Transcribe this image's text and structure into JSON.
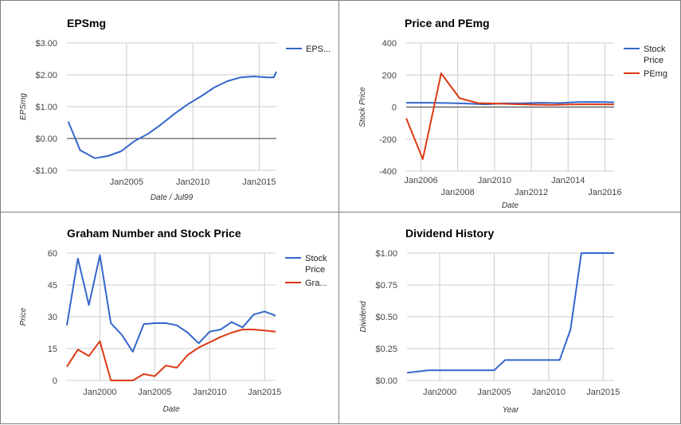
{
  "colors": {
    "blue": "#3366cc",
    "red": "#dc3912",
    "grid": "#cccccc",
    "baseline": "#333333"
  },
  "chart_data": [
    {
      "id": "eps",
      "type": "line",
      "title": "EPSmg",
      "xlabel": "Date / Jul99",
      "ylabel": "EPSmg",
      "xlim": [
        2000.5,
        2016.3
      ],
      "ylim": [
        -1,
        3
      ],
      "x_ticks": [
        {
          "v": 2005,
          "label": "Jan2005"
        },
        {
          "v": 2010,
          "label": "Jan2010"
        },
        {
          "v": 2015,
          "label": "Jan2015"
        }
      ],
      "y_ticks": [
        {
          "v": -1,
          "label": "-$1.00"
        },
        {
          "v": 0,
          "label": "$0.00"
        },
        {
          "v": 1,
          "label": "$1.00"
        },
        {
          "v": 2,
          "label": "$2.00"
        },
        {
          "v": 3,
          "label": "$3.00"
        }
      ],
      "baseline": 0,
      "legend_position": "right",
      "series": [
        {
          "name": "EPS...",
          "color": "#3366cc",
          "x": [
            2000.6,
            2001.5,
            2002.6,
            2003.6,
            2004.6,
            2005.6,
            2006.6,
            2007.6,
            2008.6,
            2009.6,
            2010.6,
            2011.6,
            2012.6,
            2013.6,
            2014.6,
            2015.6,
            2016.1,
            2016.3
          ],
          "y": [
            0.53,
            -0.37,
            -0.62,
            -0.55,
            -0.4,
            -0.08,
            0.14,
            0.44,
            0.77,
            1.07,
            1.32,
            1.6,
            1.8,
            1.92,
            1.95,
            1.92,
            1.92,
            2.1
          ]
        }
      ]
    },
    {
      "id": "pe",
      "type": "line",
      "title": "Price and PEmg",
      "xlabel": "Date",
      "ylabel": "Stock Price",
      "xlim": [
        2005.2,
        2016.5
      ],
      "ylim": [
        -400,
        400
      ],
      "x_ticks": [
        {
          "v": 2006,
          "label": "Jan2006",
          "row": 1
        },
        {
          "v": 2008,
          "label": "Jan2008",
          "row": 2
        },
        {
          "v": 2010,
          "label": "Jan2010",
          "row": 1
        },
        {
          "v": 2012,
          "label": "Jan2012",
          "row": 2
        },
        {
          "v": 2014,
          "label": "Jan2014",
          "row": 1
        },
        {
          "v": 2016,
          "label": "Jan2016",
          "row": 2
        }
      ],
      "y_ticks": [
        {
          "v": -400,
          "label": "-400"
        },
        {
          "v": -200,
          "label": "-200"
        },
        {
          "v": 0,
          "label": "0"
        },
        {
          "v": 200,
          "label": "200"
        },
        {
          "v": 400,
          "label": "400"
        }
      ],
      "baseline": 0,
      "legend_position": "right",
      "series": [
        {
          "name": "Stock Price",
          "color": "#3366cc",
          "x": [
            2005.2,
            2006.5,
            2007.5,
            2008.5,
            2009.5,
            2010.5,
            2011.5,
            2012.5,
            2013.5,
            2014.5,
            2015.5,
            2016.5
          ],
          "y": [
            27,
            27,
            25,
            22,
            17,
            23,
            24,
            27,
            25,
            31,
            32,
            30
          ]
        },
        {
          "name": "PEmg",
          "color": "#dc3912",
          "x": [
            2005.2,
            2006.1,
            2007.1,
            2008.1,
            2009.1,
            2010.1,
            2011.1,
            2012.1,
            2013.1,
            2014.1,
            2015.1,
            2016.5
          ],
          "y": [
            -70,
            -325,
            210,
            55,
            25,
            22,
            18,
            15,
            13,
            16,
            17,
            16
          ]
        }
      ]
    },
    {
      "id": "graham",
      "type": "line",
      "title": "Graham Number and Stock Price",
      "xlabel": "Date",
      "ylabel": "Price",
      "xlim": [
        1997.0,
        2016.0
      ],
      "ylim": [
        0,
        60
      ],
      "x_ticks": [
        {
          "v": 2000,
          "label": "Jan2000"
        },
        {
          "v": 2005,
          "label": "Jan2005"
        },
        {
          "v": 2010,
          "label": "Jan2010"
        },
        {
          "v": 2015,
          "label": "Jan2015"
        }
      ],
      "y_ticks": [
        {
          "v": 0,
          "label": "0"
        },
        {
          "v": 15,
          "label": "15"
        },
        {
          "v": 30,
          "label": "30"
        },
        {
          "v": 45,
          "label": "45"
        },
        {
          "v": 60,
          "label": "60"
        }
      ],
      "legend_position": "right",
      "series": [
        {
          "name": "Stock Price",
          "color": "#3366cc",
          "x": [
            1997.0,
            1998.0,
            1999.0,
            2000.0,
            2001.0,
            2002.0,
            2003.0,
            2004.0,
            2005.0,
            2006.0,
            2007.0,
            2008.0,
            2009.0,
            2010.0,
            2011.0,
            2012.0,
            2013.0,
            2014.0,
            2015.0,
            2016.0
          ],
          "y": [
            26,
            57.5,
            35.5,
            59,
            27,
            21.5,
            13.5,
            26.5,
            27,
            27,
            26,
            22.5,
            17.5,
            23,
            24,
            27.5,
            25,
            31,
            32.5,
            30.5
          ]
        },
        {
          "name": "Gra...",
          "color": "#dc3912",
          "x": [
            1997.0,
            1998.0,
            1999.0,
            2000.0,
            2001.0,
            2002.0,
            2003.0,
            2004.0,
            2005.0,
            2006.0,
            2007.0,
            2008.0,
            2009.0,
            2010.0,
            2011.0,
            2012.0,
            2013.0,
            2014.0,
            2015.0,
            2016.0
          ],
          "y": [
            6.5,
            14.5,
            11.5,
            18.5,
            0,
            0,
            0,
            3,
            2,
            7,
            6,
            12,
            15.5,
            18,
            20.5,
            22.5,
            24,
            24,
            23.5,
            23
          ]
        }
      ]
    },
    {
      "id": "dividend",
      "type": "line",
      "title": "Dividend History",
      "xlabel": "Year",
      "ylabel": "Dividend",
      "xlim": [
        1997.0,
        2016.0
      ],
      "ylim": [
        0,
        1
      ],
      "x_ticks": [
        {
          "v": 2000,
          "label": "Jan2000"
        },
        {
          "v": 2005,
          "label": "Jan2005"
        },
        {
          "v": 2010,
          "label": "Jan2010"
        },
        {
          "v": 2015,
          "label": "Jan2015"
        }
      ],
      "y_ticks": [
        {
          "v": 0,
          "label": "$0.00"
        },
        {
          "v": 0.25,
          "label": "$0.25"
        },
        {
          "v": 0.5,
          "label": "$0.50"
        },
        {
          "v": 0.75,
          "label": "$0.75"
        },
        {
          "v": 1,
          "label": "$1.00"
        }
      ],
      "series": [
        {
          "name": "",
          "color": "#3366cc",
          "x": [
            1997.0,
            1998.0,
            1999.0,
            2000.0,
            2001.0,
            2002.0,
            2003.0,
            2004.0,
            2005.0,
            2006.0,
            2007.0,
            2008.0,
            2009.0,
            2010.0,
            2011.0,
            2012.0,
            2013.0,
            2014.0,
            2015.0,
            2016.0
          ],
          "y": [
            0.06,
            0.07,
            0.08,
            0.08,
            0.08,
            0.08,
            0.08,
            0.08,
            0.08,
            0.16,
            0.16,
            0.16,
            0.16,
            0.16,
            0.16,
            0.4,
            1.0,
            1.0,
            1.0,
            1.0
          ]
        }
      ]
    }
  ]
}
